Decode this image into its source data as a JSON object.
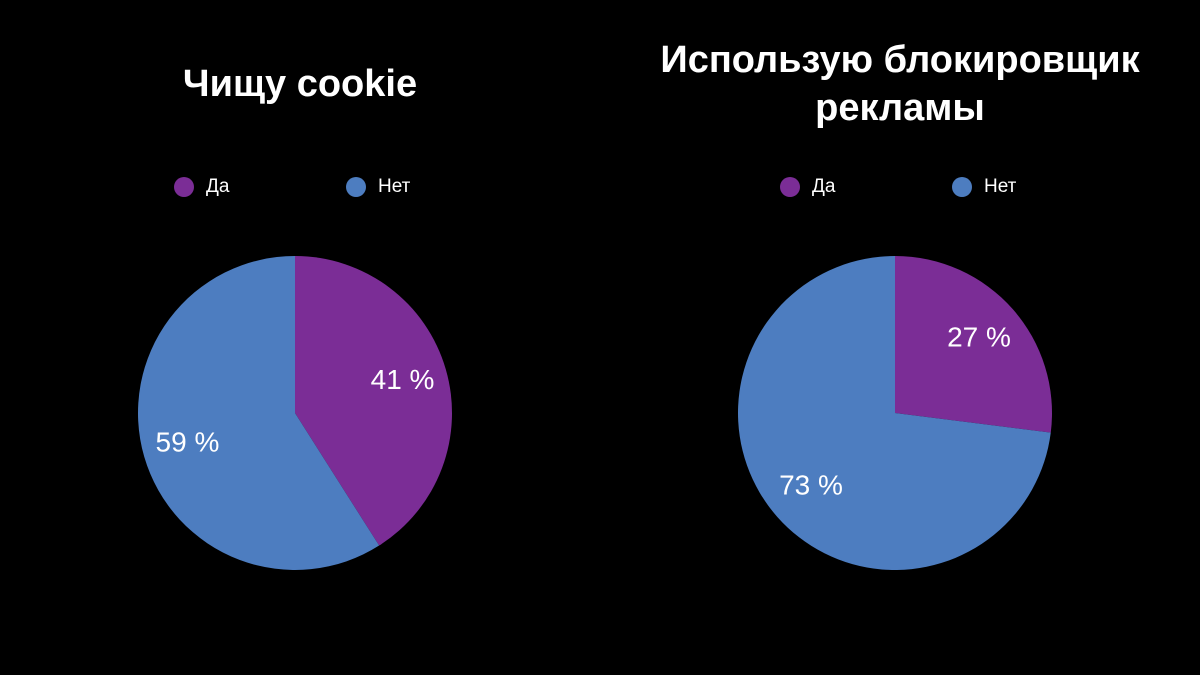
{
  "chart_data": [
    {
      "type": "pie",
      "title": "Чищу cookie",
      "categories": [
        "Да",
        "Нет"
      ],
      "values": [
        41,
        59
      ],
      "value_labels": [
        "41 %",
        "59 %"
      ],
      "colors": [
        "#7B2D96",
        "#4D7DC0"
      ],
      "legend_position": "top"
    },
    {
      "type": "pie",
      "title": "Использую блокировщик рекламы",
      "categories": [
        "Да",
        "Нет"
      ],
      "values": [
        27,
        73
      ],
      "value_labels": [
        "27 %",
        "73 %"
      ],
      "colors": [
        "#7B2D96",
        "#4D7DC0"
      ],
      "legend_position": "top"
    }
  ]
}
